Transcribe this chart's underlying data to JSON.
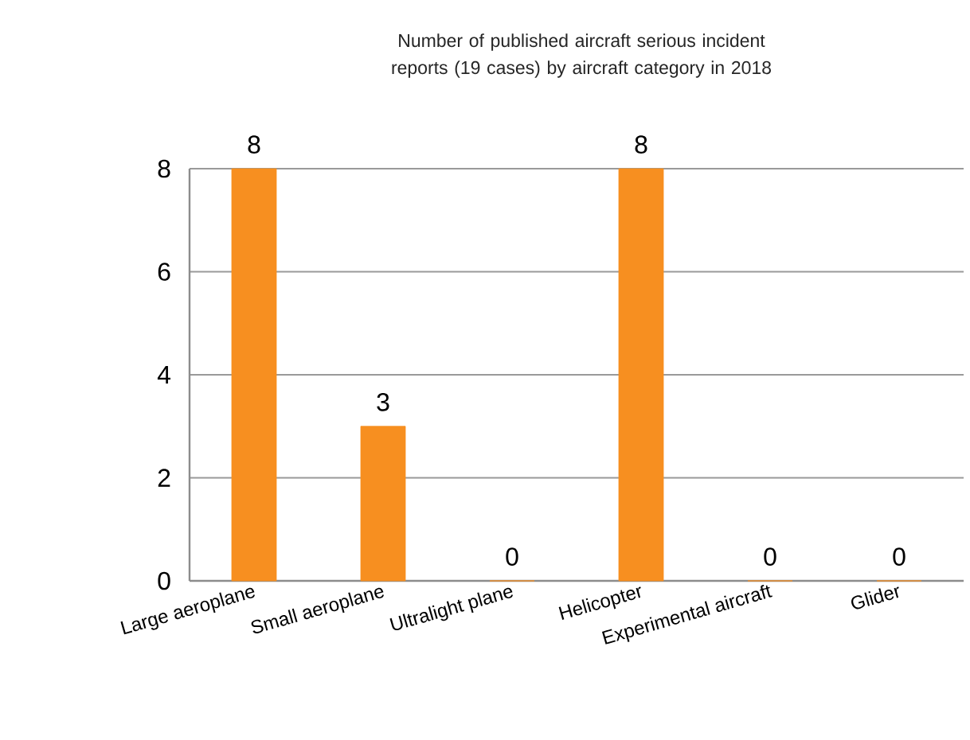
{
  "chart_data": {
    "type": "bar",
    "title": "Number of published aircraft serious incident reports (19 cases) by aircraft category in 2018",
    "categories": [
      "Large aeroplane",
      "Small aeroplane",
      "Ultralight plane",
      "Helicopter",
      "Experimental aircraft",
      "Glider"
    ],
    "values": [
      8,
      3,
      0,
      8,
      0,
      0
    ],
    "value_labels": [
      "8",
      "3",
      "0",
      "8",
      "0",
      "0"
    ],
    "color": "#f78f20",
    "ylim": [
      0,
      8
    ],
    "yticks": [
      0,
      2,
      4,
      6,
      8
    ],
    "grid": "y"
  }
}
